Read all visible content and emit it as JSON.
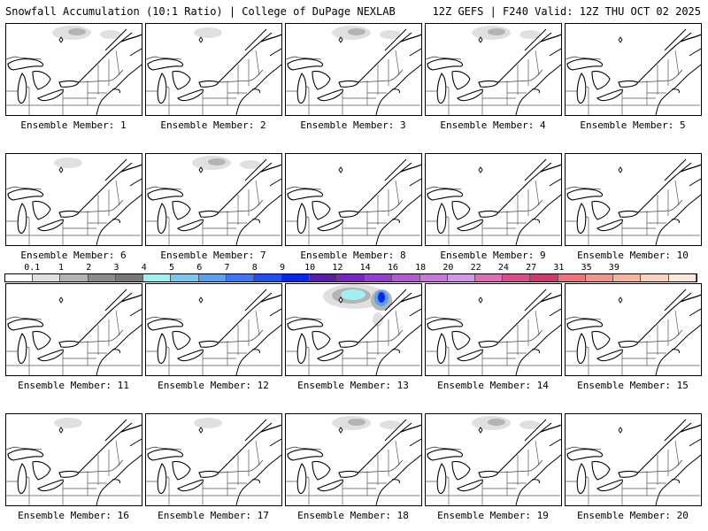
{
  "header": {
    "left": "Snowfall Accumulation (10:1 Ratio) | College of DuPage NEXLAB",
    "right": "12Z GEFS | F240 Valid: 12Z THU OCT 02 2025"
  },
  "members": [
    {
      "label": "Ensemble Member: 1",
      "snow": "light"
    },
    {
      "label": "Ensemble Member: 2",
      "snow": "trace"
    },
    {
      "label": "Ensemble Member: 3",
      "snow": "light"
    },
    {
      "label": "Ensemble Member: 4",
      "snow": "light"
    },
    {
      "label": "Ensemble Member: 5",
      "snow": "none"
    },
    {
      "label": "Ensemble Member: 6",
      "snow": "trace"
    },
    {
      "label": "Ensemble Member: 7",
      "snow": "light"
    },
    {
      "label": "Ensemble Member: 8",
      "snow": "none"
    },
    {
      "label": "Ensemble Member: 9",
      "snow": "none"
    },
    {
      "label": "Ensemble Member: 10",
      "snow": "none"
    },
    {
      "label": "Ensemble Member: 11",
      "snow": "none"
    },
    {
      "label": "Ensemble Member: 12",
      "snow": "none"
    },
    {
      "label": "Ensemble Member: 13",
      "snow": "heavy"
    },
    {
      "label": "Ensemble Member: 14",
      "snow": "none"
    },
    {
      "label": "Ensemble Member: 15",
      "snow": "none"
    },
    {
      "label": "Ensemble Member: 16",
      "snow": "trace"
    },
    {
      "label": "Ensemble Member: 17",
      "snow": "trace"
    },
    {
      "label": "Ensemble Member: 18",
      "snow": "light"
    },
    {
      "label": "Ensemble Member: 19",
      "snow": "light"
    },
    {
      "label": "Ensemble Member: 20",
      "snow": "none"
    }
  ],
  "legend": {
    "labels": [
      "0.1",
      "1",
      "2",
      "3",
      "4",
      "5",
      "6",
      "7",
      "8",
      "9",
      "10",
      "12",
      "14",
      "16",
      "18",
      "20",
      "22",
      "24",
      "27",
      "31",
      "35",
      "39"
    ],
    "colors": [
      "#ffffff",
      "#e0e0e0",
      "#b4b4b4",
      "#8c8c8c",
      "#787878",
      "#a0f0f0",
      "#78c8f0",
      "#5aa0f0",
      "#3c78f0",
      "#1e50f0",
      "#0028f0",
      "#5a1ea0",
      "#7828b4",
      "#9640c8",
      "#b45ad2",
      "#c878dc",
      "#d296e6",
      "#dc6eb4",
      "#d2508c",
      "#c83c6e",
      "#e6787d",
      "#f0968c",
      "#f5b4a0",
      "#fad2be",
      "#fde8dc"
    ]
  }
}
